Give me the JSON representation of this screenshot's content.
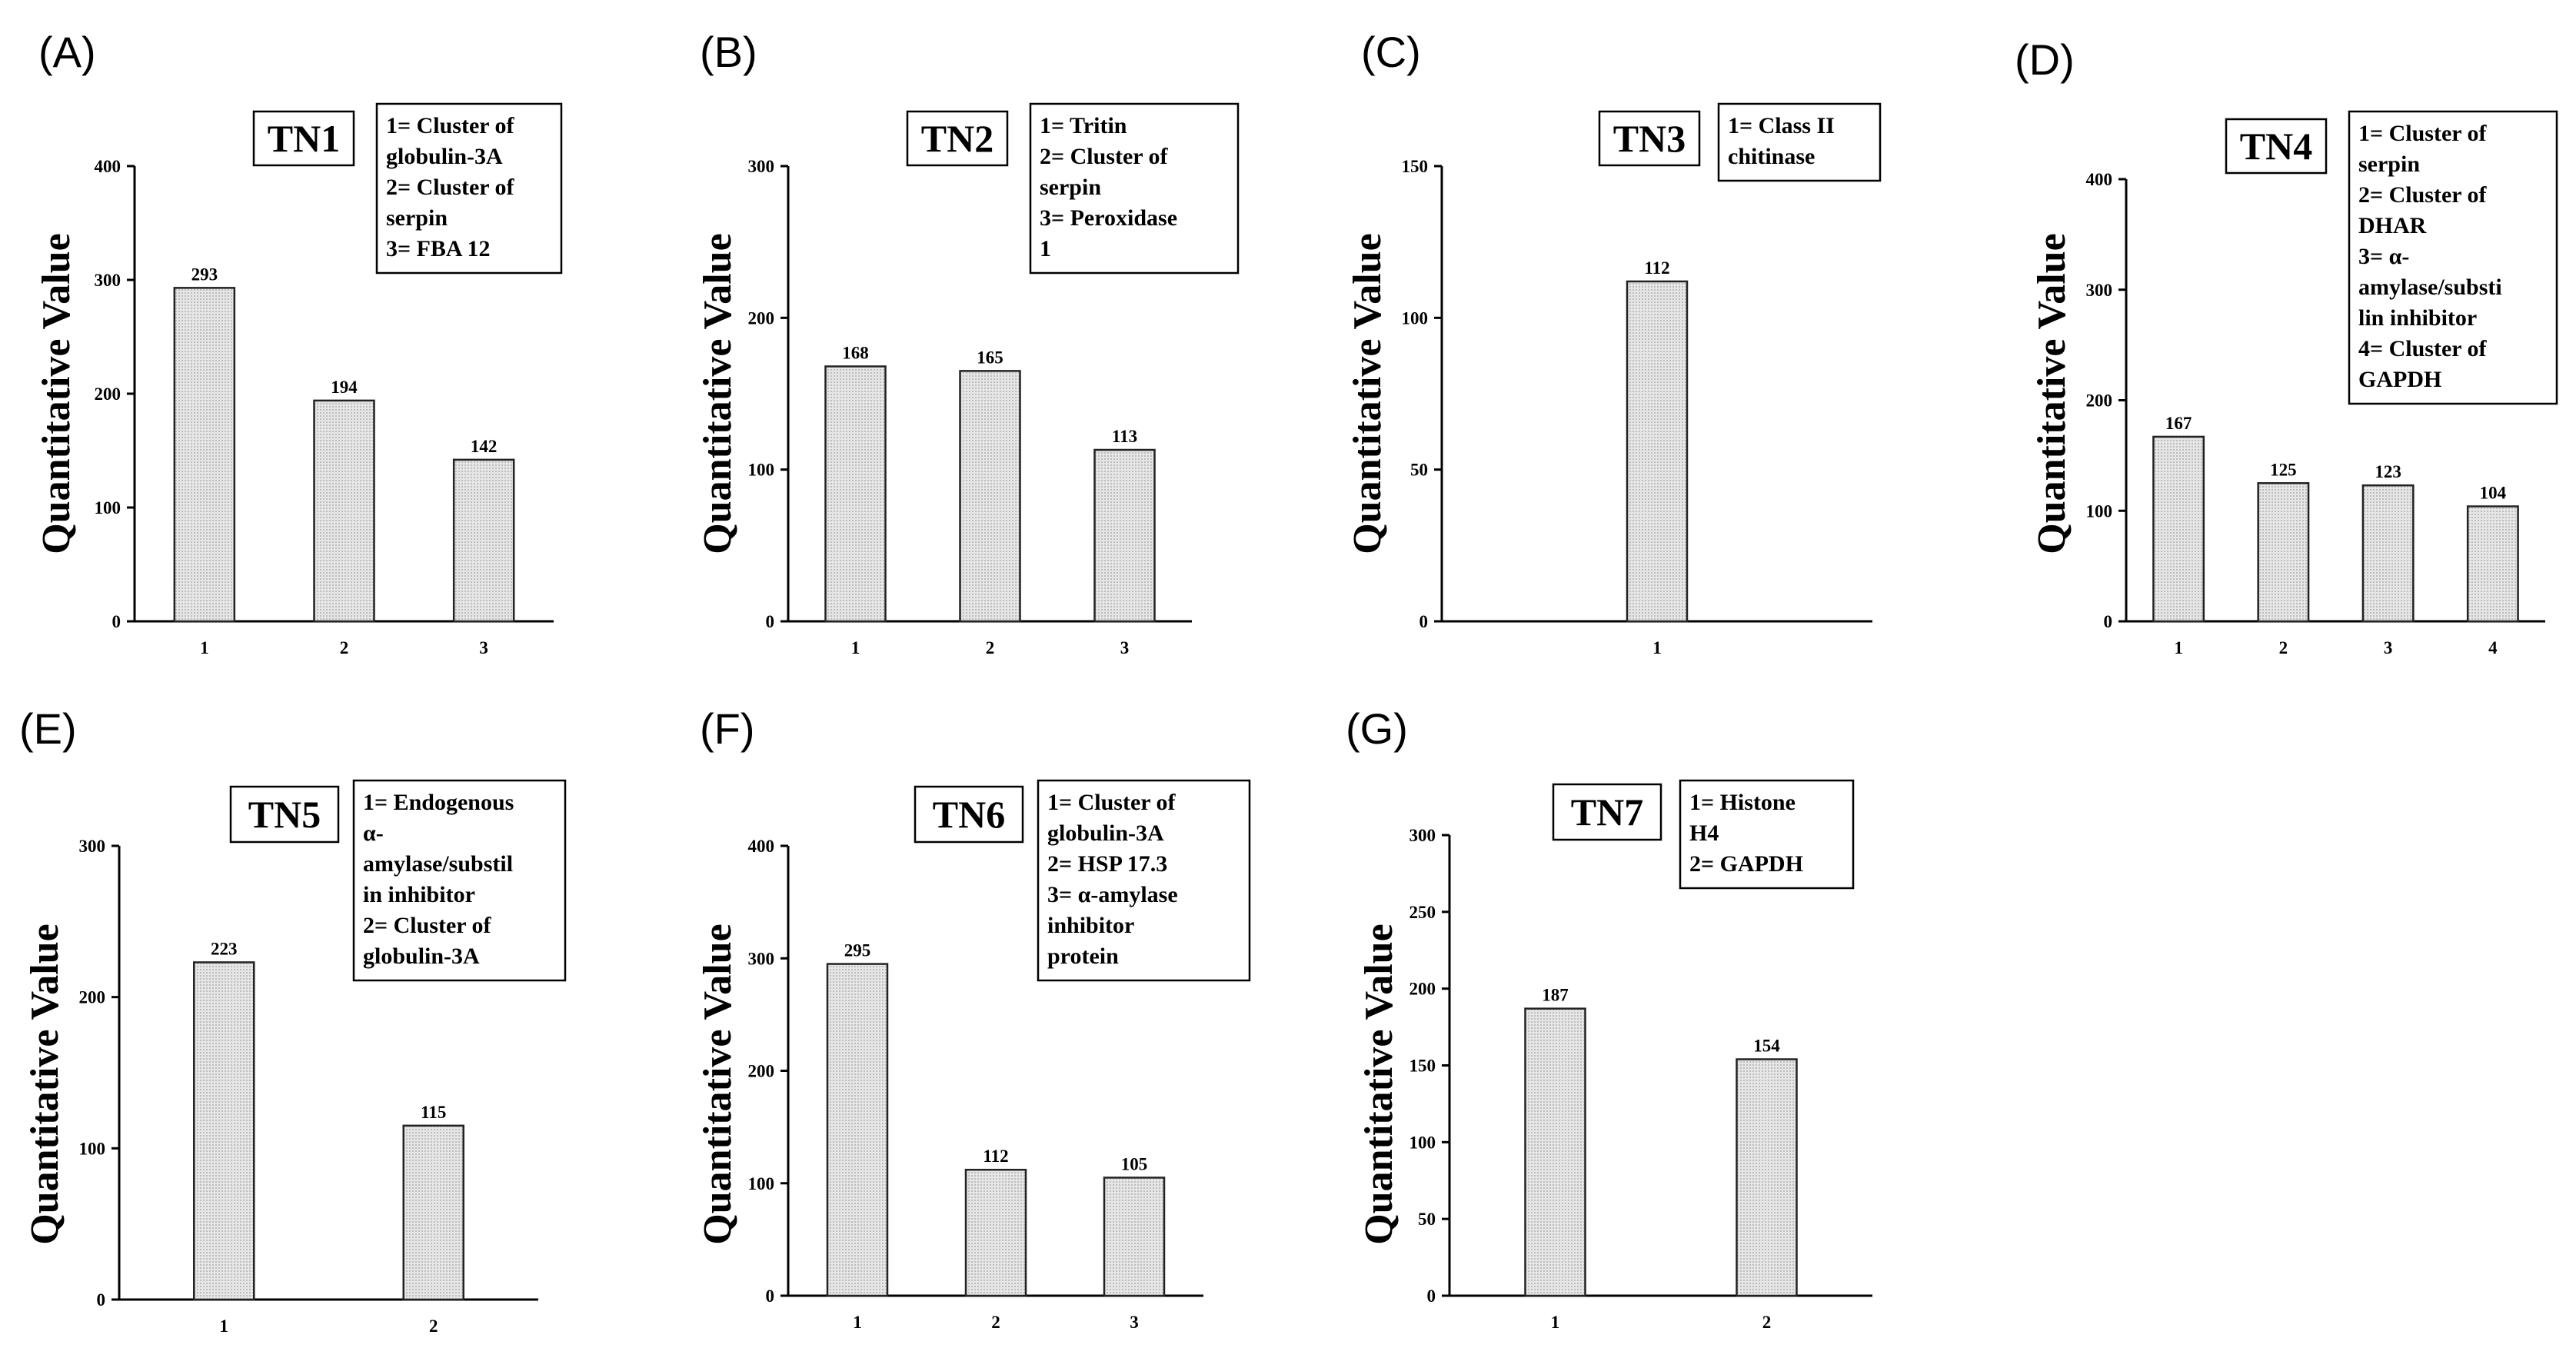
{
  "chart_data": [
    {
      "panel": "(A)",
      "type": "bar",
      "title": "TN1",
      "ylabel": "Quantitative Value",
      "xlabel": "",
      "ylim": [
        0,
        400
      ],
      "yticks": [
        0,
        100,
        200,
        300,
        400
      ],
      "categories": [
        "1",
        "2",
        "3"
      ],
      "values": [
        293,
        194,
        142
      ],
      "legend": [
        "1= Cluster of",
        "globulin-3A",
        "2= Cluster of",
        "serpin",
        "3= FBA 12"
      ]
    },
    {
      "panel": "(B)",
      "type": "bar",
      "title": "TN2",
      "ylabel": "Quantitative Value",
      "xlabel": "",
      "ylim": [
        0,
        300
      ],
      "yticks": [
        0,
        100,
        200,
        300
      ],
      "categories": [
        "1",
        "2",
        "3"
      ],
      "values": [
        168,
        165,
        113
      ],
      "legend": [
        "1= Tritin",
        "2= Cluster of",
        "serpin",
        "3= Peroxidase",
        "1"
      ]
    },
    {
      "panel": "(C)",
      "type": "bar",
      "title": "TN3",
      "ylabel": "Quantitative Value",
      "xlabel": "",
      "ylim": [
        0,
        150
      ],
      "yticks": [
        0,
        50,
        100,
        150
      ],
      "categories": [
        "1"
      ],
      "values": [
        112
      ],
      "legend": [
        "1= Class II",
        "chitinase"
      ]
    },
    {
      "panel": "(D)",
      "type": "bar",
      "title": "TN4",
      "ylabel": "Quantitative Value",
      "xlabel": "",
      "ylim": [
        0,
        400
      ],
      "yticks": [
        0,
        100,
        200,
        300,
        400
      ],
      "categories": [
        "1",
        "2",
        "3",
        "4"
      ],
      "values": [
        167,
        125,
        123,
        104
      ],
      "legend": [
        "1= Cluster of",
        "serpin",
        "2= Cluster of",
        "DHAR",
        "3= α-",
        "amylase/substi",
        "lin inhibitor",
        "4= Cluster of",
        "GAPDH"
      ]
    },
    {
      "panel": "(E)",
      "type": "bar",
      "title": "TN5",
      "ylabel": "Quantitative Value",
      "xlabel": "",
      "ylim": [
        0,
        300
      ],
      "yticks": [
        0,
        100,
        200,
        300
      ],
      "categories": [
        "1",
        "2"
      ],
      "values": [
        223,
        115
      ],
      "legend": [
        "1= Endogenous",
        "α-",
        "amylase/substil",
        "in inhibitor",
        "2= Cluster of",
        "globulin-3A"
      ]
    },
    {
      "panel": "(F)",
      "type": "bar",
      "title": "TN6",
      "ylabel": "Quantitative Value",
      "xlabel": "",
      "ylim": [
        0,
        400
      ],
      "yticks": [
        0,
        100,
        200,
        300,
        400
      ],
      "categories": [
        "1",
        "2",
        "3"
      ],
      "values": [
        295,
        112,
        105
      ],
      "legend": [
        "1= Cluster of",
        "globulin-3A",
        "2= HSP 17.3",
        "3= α-amylase",
        "inhibitor",
        "protein"
      ]
    },
    {
      "panel": "(G)",
      "type": "bar",
      "title": "TN7",
      "ylabel": "Quantitative Value",
      "xlabel": "",
      "ylim": [
        0,
        300
      ],
      "yticks": [
        0,
        50,
        100,
        150,
        200,
        250,
        300
      ],
      "categories": [
        "1",
        "2"
      ],
      "values": [
        187,
        154
      ],
      "legend": [
        "1= Histone",
        "H4",
        "2= GAPDH"
      ]
    }
  ],
  "colors": {
    "bar_fill": "#dcdcdc",
    "axis": "#000000",
    "bar_stroke": "#222222"
  }
}
